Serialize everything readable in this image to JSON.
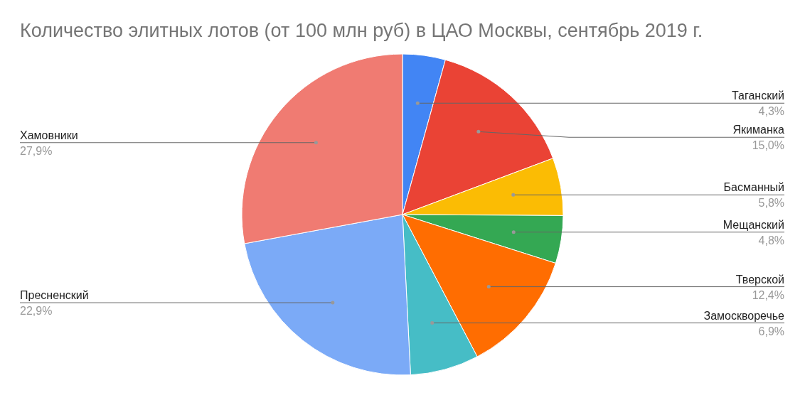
{
  "chart_data": {
    "type": "pie",
    "title": "Количество элитных лотов (от 100 млн руб) в ЦАО Москвы, сентябрь 2019 г.",
    "categories": [
      "Таганский",
      "Якиманка",
      "Басманный",
      "Мещанский",
      "Тверской",
      "Замоскворечье",
      "Пресненский",
      "Хамовники"
    ],
    "values": [
      4.3,
      15.0,
      5.8,
      4.8,
      12.4,
      6.9,
      22.9,
      27.9
    ],
    "value_labels": [
      "4,3%",
      "15,0%",
      "5,8%",
      "4,8%",
      "12,4%",
      "6,9%",
      "22,9%",
      "27,9%"
    ],
    "colors": [
      "#4285f4",
      "#ea4335",
      "#fbbc04",
      "#34a853",
      "#ff6d01",
      "#46bdc6",
      "#7baaf7",
      "#f07b72"
    ]
  }
}
